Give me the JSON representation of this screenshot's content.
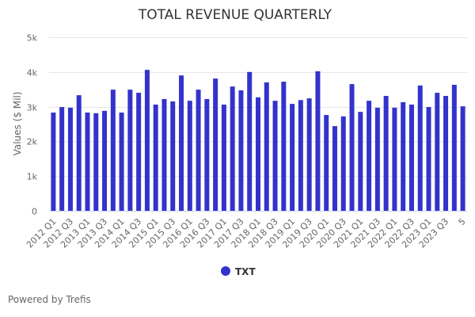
{
  "chart_data": {
    "type": "bar",
    "title": "TOTAL REVENUE QUARTERLY",
    "xlabel": "",
    "ylabel": "Values ($ Mil)",
    "ylim": [
      0,
      5000
    ],
    "yticks": [
      0,
      1000,
      2000,
      3000,
      4000,
      5000
    ],
    "ytick_labels": [
      "0",
      "1k",
      "2k",
      "3k",
      "4k",
      "5k"
    ],
    "grid": true,
    "legend_position": "bottom-center",
    "categories": [
      "2012 Q1",
      "2012 Q2",
      "2012 Q3",
      "2012 Q4",
      "2013 Q1",
      "2013 Q2",
      "2013 Q3",
      "2013 Q4",
      "2014 Q1",
      "2014 Q2",
      "2014 Q3",
      "2014 Q4",
      "2015 Q1",
      "2015 Q2",
      "2015 Q3",
      "2015 Q4",
      "2016 Q1",
      "2016 Q2",
      "2016 Q3",
      "2016 Q4",
      "2017 Q1",
      "2017 Q2",
      "2017 Q3",
      "2017 Q4",
      "2018 Q1",
      "2018 Q2",
      "2018 Q3",
      "2018 Q4",
      "2019 Q1",
      "2019 Q2",
      "2019 Q3",
      "2019 Q4",
      "2020 Q1",
      "2020 Q2",
      "2020 Q3",
      "2020 Q4",
      "2021 Q1",
      "2021 Q2",
      "2021 Q3",
      "2021 Q4",
      "2022 Q1",
      "2022 Q2",
      "2022 Q3",
      "2022 Q4",
      "2023 Q1",
      "2023 Q2",
      "2023 Q3",
      "2023 Q4",
      "5"
    ],
    "xtick_labels": [
      "2012 Q1",
      "2012 Q3",
      "2013 Q1",
      "2013 Q3",
      "2014 Q1",
      "2014 Q3",
      "2015 Q1",
      "2015 Q3",
      "2016 Q1",
      "2016 Q3",
      "2017 Q1",
      "2017 Q3",
      "2018 Q1",
      "2018 Q3",
      "2019 Q1",
      "2019 Q3",
      "2020 Q1",
      "2020 Q3",
      "2021 Q1",
      "2021 Q3",
      "2022 Q1",
      "2022 Q3",
      "2023 Q1",
      "2023 Q3",
      "5"
    ],
    "series": [
      {
        "name": "TXT",
        "color": "#3333cc",
        "values": [
          2830,
          2990,
          2970,
          3330,
          2830,
          2810,
          2880,
          3490,
          2830,
          3490,
          3400,
          4060,
          3060,
          3220,
          3150,
          3900,
          3170,
          3490,
          3220,
          3810,
          3060,
          3580,
          3470,
          4000,
          3270,
          3700,
          3170,
          3720,
          3080,
          3190,
          3240,
          4020,
          2760,
          2440,
          2720,
          3650,
          2850,
          3170,
          2970,
          3310,
          2970,
          3130,
          3060,
          3610,
          2990,
          3400,
          3310,
          3630,
          3010
        ]
      }
    ]
  },
  "footer": {
    "credit": "Powered by Trefis"
  }
}
